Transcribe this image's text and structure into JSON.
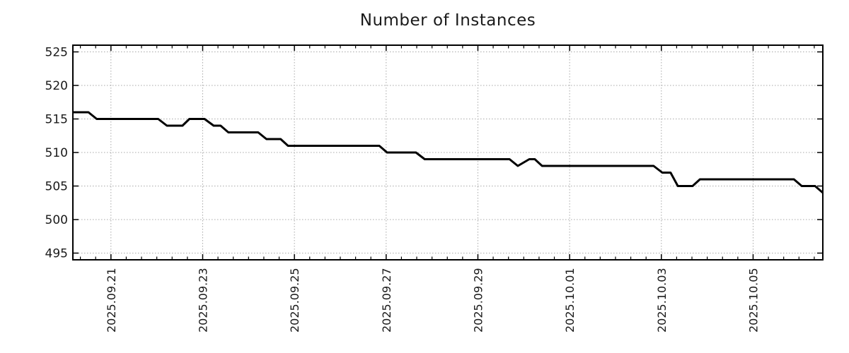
{
  "title": "Number of Instances",
  "chart_data": {
    "type": "line",
    "title": "Number of Instances",
    "grid": {
      "show": true,
      "style": "dotted",
      "color": "#a8a8a8"
    },
    "axis_color": "#000000",
    "background": "#ffffff",
    "y_axis": {
      "ticks": [
        495,
        500,
        505,
        510,
        515,
        520,
        525
      ],
      "range": [
        494,
        526
      ],
      "tick_side": "both",
      "label_color": "#1a1a1a"
    },
    "x_axis": {
      "tick_labels": [
        "2025.09.21",
        "2025.09.23",
        "2025.09.25",
        "2025.09.27",
        "2025.09.29",
        "2025.10.01",
        "2025.10.03",
        "2025.10.05"
      ],
      "tick_days": [
        21,
        23,
        25,
        27,
        29,
        31,
        33,
        35
      ],
      "minor_tick_step_days": 0.3333,
      "range_days": [
        20.17,
        36.52
      ],
      "x_unit": "day index on Sep-Oct 2025 timeline (21 = 2025.09.21, 31 = 2025.10.01, 35 = 2025.10.05)",
      "label_rotation_deg": 90,
      "label_color": "#1a1a1a"
    },
    "series": [
      {
        "name": "instances",
        "color": "#000000",
        "line_width": 3,
        "points_day_value": [
          [
            20.17,
            516
          ],
          [
            20.51,
            516
          ],
          [
            20.69,
            515
          ],
          [
            22.03,
            515
          ],
          [
            22.22,
            514
          ],
          [
            22.56,
            514
          ],
          [
            22.71,
            515
          ],
          [
            23.04,
            515
          ],
          [
            23.24,
            514
          ],
          [
            23.39,
            514
          ],
          [
            23.56,
            513
          ],
          [
            24.21,
            513
          ],
          [
            24.39,
            512
          ],
          [
            24.7,
            512
          ],
          [
            24.86,
            511
          ],
          [
            26.85,
            511
          ],
          [
            27.02,
            510
          ],
          [
            27.65,
            510
          ],
          [
            27.84,
            509
          ],
          [
            29.69,
            509
          ],
          [
            29.87,
            508
          ],
          [
            30.12,
            509
          ],
          [
            30.24,
            509
          ],
          [
            30.4,
            508
          ],
          [
            32.83,
            508
          ],
          [
            33.02,
            507
          ],
          [
            33.2,
            507
          ],
          [
            33.36,
            505
          ],
          [
            33.68,
            505
          ],
          [
            33.84,
            506
          ],
          [
            35.89,
            506
          ],
          [
            36.06,
            505
          ],
          [
            36.35,
            505
          ],
          [
            36.52,
            504
          ]
        ]
      }
    ]
  }
}
